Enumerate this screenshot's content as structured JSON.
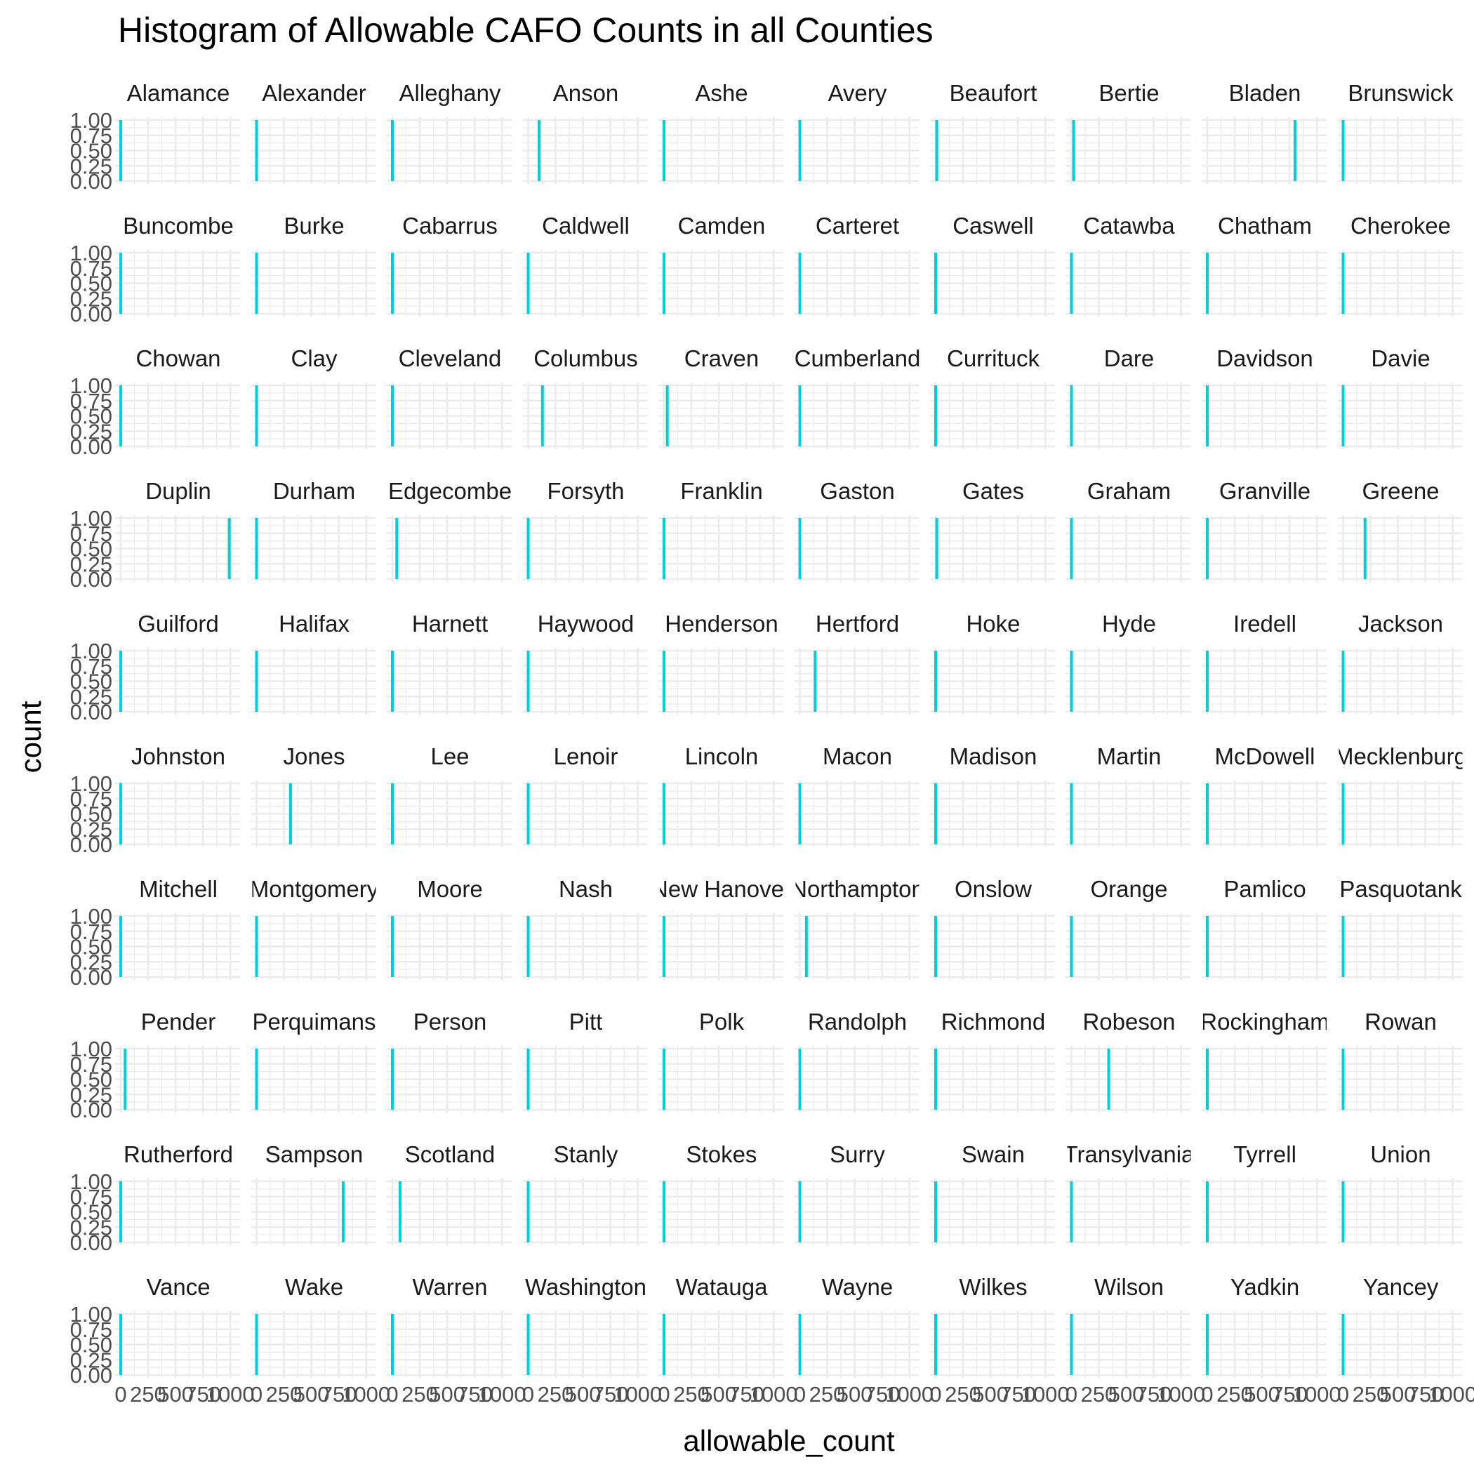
{
  "chart_data": {
    "type": "bar",
    "chart_kind": "faceted histogram",
    "title": "Histogram of Allowable CAFO Counts in all Counties",
    "xlabel": "allowable_count",
    "ylabel": "count",
    "xlim": [
      0,
      1050
    ],
    "ylim": [
      0,
      1
    ],
    "x_ticks": [
      0,
      250,
      500,
      750,
      1000
    ],
    "x_tick_labels": [
      "0",
      "250",
      "500",
      "750",
      "1000"
    ],
    "y_ticks": [
      0,
      0.25,
      0.5,
      0.75,
      1
    ],
    "y_tick_labels": [
      "0.00",
      "0.25",
      "0.50",
      "0.75",
      "1.00"
    ],
    "facet_columns": 10,
    "grid": true,
    "legend": "none",
    "bar_color": "#00ced8",
    "bin_width": 10,
    "facets": [
      {
        "county": "Alamance",
        "allowable_count": 0,
        "count": 1
      },
      {
        "county": "Alexander",
        "allowable_count": 0,
        "count": 1
      },
      {
        "county": "Alleghany",
        "allowable_count": 0,
        "count": 1
      },
      {
        "county": "Anson",
        "allowable_count": 100,
        "count": 1
      },
      {
        "county": "Ashe",
        "allowable_count": 0,
        "count": 1
      },
      {
        "county": "Avery",
        "allowable_count": 0,
        "count": 1
      },
      {
        "county": "Beaufort",
        "allowable_count": 10,
        "count": 1
      },
      {
        "county": "Bertie",
        "allowable_count": 20,
        "count": 1
      },
      {
        "county": "Bladen",
        "allowable_count": 800,
        "count": 1
      },
      {
        "county": "Brunswick",
        "allowable_count": 0,
        "count": 1
      },
      {
        "county": "Buncombe",
        "allowable_count": 0,
        "count": 1
      },
      {
        "county": "Burke",
        "allowable_count": 0,
        "count": 1
      },
      {
        "county": "Cabarrus",
        "allowable_count": 0,
        "count": 1
      },
      {
        "county": "Caldwell",
        "allowable_count": 0,
        "count": 1
      },
      {
        "county": "Camden",
        "allowable_count": 0,
        "count": 1
      },
      {
        "county": "Carteret",
        "allowable_count": 0,
        "count": 1
      },
      {
        "county": "Caswell",
        "allowable_count": 0,
        "count": 1
      },
      {
        "county": "Catawba",
        "allowable_count": 0,
        "count": 1
      },
      {
        "county": "Chatham",
        "allowable_count": 0,
        "count": 1
      },
      {
        "county": "Cherokee",
        "allowable_count": 0,
        "count": 1
      },
      {
        "county": "Chowan",
        "allowable_count": 0,
        "count": 1
      },
      {
        "county": "Clay",
        "allowable_count": 0,
        "count": 1
      },
      {
        "county": "Cleveland",
        "allowable_count": 0,
        "count": 1
      },
      {
        "county": "Columbus",
        "allowable_count": 130,
        "count": 1
      },
      {
        "county": "Craven",
        "allowable_count": 30,
        "count": 1
      },
      {
        "county": "Cumberland",
        "allowable_count": 0,
        "count": 1
      },
      {
        "county": "Currituck",
        "allowable_count": 0,
        "count": 1
      },
      {
        "county": "Dare",
        "allowable_count": 0,
        "count": 1
      },
      {
        "county": "Davidson",
        "allowable_count": 0,
        "count": 1
      },
      {
        "county": "Davie",
        "allowable_count": 0,
        "count": 1
      },
      {
        "county": "Duplin",
        "allowable_count": 990,
        "count": 1
      },
      {
        "county": "Durham",
        "allowable_count": 0,
        "count": 1
      },
      {
        "county": "Edgecombe",
        "allowable_count": 40,
        "count": 1
      },
      {
        "county": "Forsyth",
        "allowable_count": 0,
        "count": 1
      },
      {
        "county": "Franklin",
        "allowable_count": 0,
        "count": 1
      },
      {
        "county": "Gaston",
        "allowable_count": 0,
        "count": 1
      },
      {
        "county": "Gates",
        "allowable_count": 10,
        "count": 1
      },
      {
        "county": "Graham",
        "allowable_count": 0,
        "count": 1
      },
      {
        "county": "Granville",
        "allowable_count": 0,
        "count": 1
      },
      {
        "county": "Greene",
        "allowable_count": 200,
        "count": 1
      },
      {
        "county": "Guilford",
        "allowable_count": 0,
        "count": 1
      },
      {
        "county": "Halifax",
        "allowable_count": 0,
        "count": 1
      },
      {
        "county": "Harnett",
        "allowable_count": 0,
        "count": 1
      },
      {
        "county": "Haywood",
        "allowable_count": 0,
        "count": 1
      },
      {
        "county": "Henderson",
        "allowable_count": 0,
        "count": 1
      },
      {
        "county": "Hertford",
        "allowable_count": 140,
        "count": 1
      },
      {
        "county": "Hoke",
        "allowable_count": 0,
        "count": 1
      },
      {
        "county": "Hyde",
        "allowable_count": 0,
        "count": 1
      },
      {
        "county": "Iredell",
        "allowable_count": 0,
        "count": 1
      },
      {
        "county": "Jackson",
        "allowable_count": 0,
        "count": 1
      },
      {
        "county": "Johnston",
        "allowable_count": 0,
        "count": 1
      },
      {
        "county": "Jones",
        "allowable_count": 310,
        "count": 1
      },
      {
        "county": "Lee",
        "allowable_count": 0,
        "count": 1
      },
      {
        "county": "Lenoir",
        "allowable_count": 0,
        "count": 1
      },
      {
        "county": "Lincoln",
        "allowable_count": 0,
        "count": 1
      },
      {
        "county": "Macon",
        "allowable_count": 0,
        "count": 1
      },
      {
        "county": "Madison",
        "allowable_count": 0,
        "count": 1
      },
      {
        "county": "Martin",
        "allowable_count": 0,
        "count": 1
      },
      {
        "county": "McDowell",
        "allowable_count": 0,
        "count": 1
      },
      {
        "county": "Mecklenburg",
        "allowable_count": 0,
        "count": 1
      },
      {
        "county": "Mitchell",
        "allowable_count": 0,
        "count": 1
      },
      {
        "county": "Montgomery",
        "allowable_count": 0,
        "count": 1
      },
      {
        "county": "Moore",
        "allowable_count": 0,
        "count": 1
      },
      {
        "county": "Nash",
        "allowable_count": 0,
        "count": 1
      },
      {
        "county": "New Hanover",
        "allowable_count": 0,
        "count": 1
      },
      {
        "county": "Northampton",
        "allowable_count": 60,
        "count": 1
      },
      {
        "county": "Onslow",
        "allowable_count": 0,
        "count": 1
      },
      {
        "county": "Orange",
        "allowable_count": 0,
        "count": 1
      },
      {
        "county": "Pamlico",
        "allowable_count": 0,
        "count": 1
      },
      {
        "county": "Pasquotank",
        "allowable_count": 0,
        "count": 1
      },
      {
        "county": "Pender",
        "allowable_count": 40,
        "count": 1
      },
      {
        "county": "Perquimans",
        "allowable_count": 0,
        "count": 1
      },
      {
        "county": "Person",
        "allowable_count": 0,
        "count": 1
      },
      {
        "county": "Pitt",
        "allowable_count": 0,
        "count": 1
      },
      {
        "county": "Polk",
        "allowable_count": 0,
        "count": 1
      },
      {
        "county": "Randolph",
        "allowable_count": 0,
        "count": 1
      },
      {
        "county": "Richmond",
        "allowable_count": 0,
        "count": 1
      },
      {
        "county": "Robeson",
        "allowable_count": 340,
        "count": 1
      },
      {
        "county": "Rockingham",
        "allowable_count": 0,
        "count": 1
      },
      {
        "county": "Rowan",
        "allowable_count": 0,
        "count": 1
      },
      {
        "county": "Rutherford",
        "allowable_count": 0,
        "count": 1
      },
      {
        "county": "Sampson",
        "allowable_count": 790,
        "count": 1
      },
      {
        "county": "Scotland",
        "allowable_count": 70,
        "count": 1
      },
      {
        "county": "Stanly",
        "allowable_count": 0,
        "count": 1
      },
      {
        "county": "Stokes",
        "allowable_count": 0,
        "count": 1
      },
      {
        "county": "Surry",
        "allowable_count": 0,
        "count": 1
      },
      {
        "county": "Swain",
        "allowable_count": 0,
        "count": 1
      },
      {
        "county": "Transylvania",
        "allowable_count": 0,
        "count": 1
      },
      {
        "county": "Tyrrell",
        "allowable_count": 0,
        "count": 1
      },
      {
        "county": "Union",
        "allowable_count": 0,
        "count": 1
      },
      {
        "county": "Vance",
        "allowable_count": 0,
        "count": 1
      },
      {
        "county": "Wake",
        "allowable_count": 0,
        "count": 1
      },
      {
        "county": "Warren",
        "allowable_count": 0,
        "count": 1
      },
      {
        "county": "Washington",
        "allowable_count": 0,
        "count": 1
      },
      {
        "county": "Watauga",
        "allowable_count": 0,
        "count": 1
      },
      {
        "county": "Wayne",
        "allowable_count": 0,
        "count": 1
      },
      {
        "county": "Wilkes",
        "allowable_count": 0,
        "count": 1
      },
      {
        "county": "Wilson",
        "allowable_count": 0,
        "count": 1
      },
      {
        "county": "Yadkin",
        "allowable_count": 0,
        "count": 1
      },
      {
        "county": "Yancey",
        "allowable_count": 0,
        "count": 1
      }
    ]
  }
}
